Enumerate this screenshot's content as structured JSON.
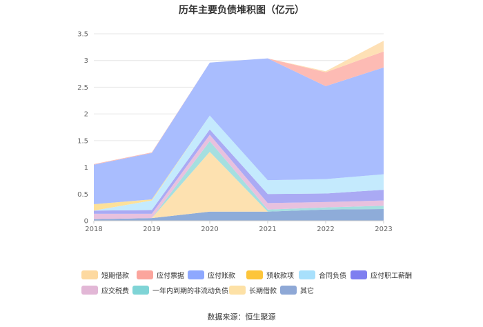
{
  "chart_data": {
    "type": "area",
    "stacked": true,
    "title": "历年主要负债堆积图（亿元）",
    "x": [
      "2018",
      "2019",
      "2020",
      "2021",
      "2022",
      "2023"
    ],
    "ylim": [
      0,
      3.5
    ],
    "yticks": [
      "0",
      "0.5",
      "1",
      "1.5",
      "2",
      "2.5",
      "3",
      "3.5"
    ],
    "grid": true,
    "legend_position": "bottom",
    "series": [
      {
        "name": "其它",
        "color": "#8eacd9",
        "values": [
          0.03,
          0.05,
          0.17,
          0.17,
          0.21,
          0.22
        ]
      },
      {
        "name": "长期借款",
        "color": "#fde1b0",
        "values": [
          0.0,
          0.0,
          1.12,
          0.0,
          0.0,
          0.0
        ]
      },
      {
        "name": "一年内到期的非流动负债",
        "color": "#a5dfe0",
        "values": [
          0.0,
          0.0,
          0.2,
          0.04,
          0.04,
          0.06
        ]
      },
      {
        "name": "应交税费",
        "color": "#e8c1de",
        "values": [
          0.1,
          0.08,
          0.12,
          0.12,
          0.1,
          0.1
        ]
      },
      {
        "name": "应付职工薪酬",
        "color": "#aaaaf4",
        "values": [
          0.06,
          0.07,
          0.1,
          0.17,
          0.16,
          0.2
        ]
      },
      {
        "name": "合同负债",
        "color": "#c4eafd",
        "values": [
          0.0,
          0.18,
          0.26,
          0.26,
          0.27,
          0.29
        ]
      },
      {
        "name": "预收款项",
        "color": "#fde199",
        "values": [
          0.12,
          0.02,
          0.0,
          0.0,
          0.0,
          0.0
        ]
      },
      {
        "name": "应付账款",
        "color": "#a9bdfe",
        "values": [
          0.74,
          0.87,
          0.99,
          2.28,
          1.74,
          2.0
        ]
      },
      {
        "name": "应付票据",
        "color": "#fdbbb4",
        "values": [
          0.01,
          0.01,
          0.0,
          0.0,
          0.26,
          0.3
        ]
      },
      {
        "name": "短期借款",
        "color": "#fee0b5",
        "values": [
          0.0,
          0.0,
          0.0,
          0.0,
          0.02,
          0.2
        ]
      }
    ]
  },
  "legend": {
    "rows": [
      [
        {
          "label": "短期借款",
          "color": "#fdd9a0"
        },
        {
          "label": "应付票据",
          "color": "#fba59d"
        },
        {
          "label": "应付账款",
          "color": "#8ea8fe"
        },
        {
          "label": "预收款项",
          "color": "#fdc53a"
        },
        {
          "label": "合同负债",
          "color": "#a8e0fc"
        },
        {
          "label": "应付职工薪酬",
          "color": "#7f7ff0"
        }
      ],
      [
        {
          "label": "应交税费",
          "color": "#e2b7d6"
        },
        {
          "label": "一年内到期的非流动负债",
          "color": "#7fd4d6"
        },
        {
          "label": "长期借款",
          "color": "#fde1a6"
        },
        {
          "label": "其它",
          "color": "#8ea8d6"
        }
      ]
    ]
  },
  "source_note": "数据来源：恒生聚源"
}
